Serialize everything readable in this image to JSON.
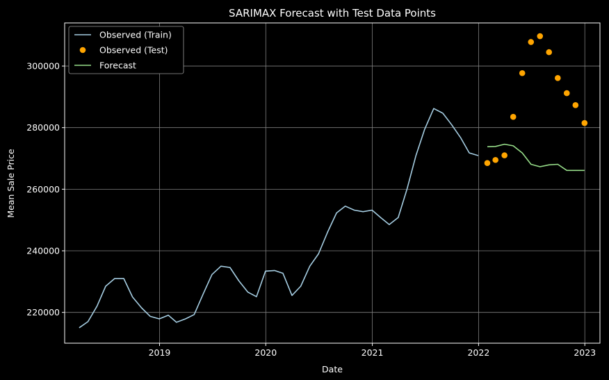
{
  "chart_data": {
    "type": "line",
    "title": "SARIMAX Forecast with Test Data Points",
    "xlabel": "Date",
    "ylabel": "Mean Sale Price",
    "xlim": [
      "2018-02-09",
      "2023-02-22"
    ],
    "ylim": [
      210000,
      314000
    ],
    "x_ticks": [
      "2019",
      "2020",
      "2021",
      "2022",
      "2023"
    ],
    "y_ticks": [
      220000,
      240000,
      260000,
      280000,
      300000
    ],
    "grid": true,
    "legend_position": "top-left",
    "colors": {
      "train": "#a6cee3",
      "test": "#ffa500",
      "forecast": "#98df8a",
      "grid": "#808080",
      "axes": "#ffffff"
    },
    "series": [
      {
        "name": "Observed (Train)",
        "kind": "line",
        "x": [
          "2018-03-31",
          "2018-04-30",
          "2018-05-31",
          "2018-06-30",
          "2018-07-31",
          "2018-08-31",
          "2018-09-30",
          "2018-10-31",
          "2018-11-30",
          "2018-12-31",
          "2019-01-31",
          "2019-02-28",
          "2019-03-31",
          "2019-04-30",
          "2019-05-31",
          "2019-06-30",
          "2019-07-31",
          "2019-08-31",
          "2019-09-30",
          "2019-10-31",
          "2019-11-30",
          "2019-12-31",
          "2020-01-31",
          "2020-02-29",
          "2020-03-31",
          "2020-04-30",
          "2020-05-31",
          "2020-06-30",
          "2020-07-31",
          "2020-08-31",
          "2020-09-30",
          "2020-10-31",
          "2020-11-30",
          "2020-12-31",
          "2021-01-31",
          "2021-02-28",
          "2021-03-31",
          "2021-04-30",
          "2021-05-31",
          "2021-06-30",
          "2021-07-31",
          "2021-08-31",
          "2021-09-30",
          "2021-10-31",
          "2021-11-30",
          "2021-12-31"
        ],
        "y": [
          215000,
          217000,
          222000,
          228500,
          231000,
          231000,
          225000,
          221500,
          218700,
          217900,
          219100,
          216800,
          217900,
          219300,
          226000,
          232300,
          235000,
          234600,
          230300,
          226600,
          225100,
          233400,
          233600,
          232700,
          225500,
          228500,
          235000,
          239000,
          246000,
          252300,
          254500,
          253200,
          252700,
          253200,
          250700,
          248500,
          250800,
          260000,
          271000,
          279500,
          286200,
          284700,
          281000,
          276800,
          271800,
          270900
        ]
      },
      {
        "name": "Observed (Test)",
        "kind": "scatter",
        "x": [
          "2022-01-31",
          "2022-02-28",
          "2022-03-31",
          "2022-04-30",
          "2022-05-31",
          "2022-06-30",
          "2022-07-31",
          "2022-08-31",
          "2022-09-30",
          "2022-10-31",
          "2022-11-30",
          "2022-12-31"
        ],
        "y": [
          268500,
          269500,
          271000,
          283500,
          297700,
          307800,
          309700,
          304500,
          296100,
          291200,
          287300,
          281500
        ]
      },
      {
        "name": "Forecast",
        "kind": "line",
        "x": [
          "2022-01-31",
          "2022-02-28",
          "2022-03-31",
          "2022-04-30",
          "2022-05-31",
          "2022-06-30",
          "2022-07-31",
          "2022-08-31",
          "2022-09-30",
          "2022-10-31",
          "2022-11-30",
          "2022-12-31"
        ],
        "y": [
          273800,
          273900,
          274600,
          274100,
          271800,
          268100,
          267300,
          267900,
          268100,
          266100,
          266100,
          266100
        ]
      }
    ]
  }
}
